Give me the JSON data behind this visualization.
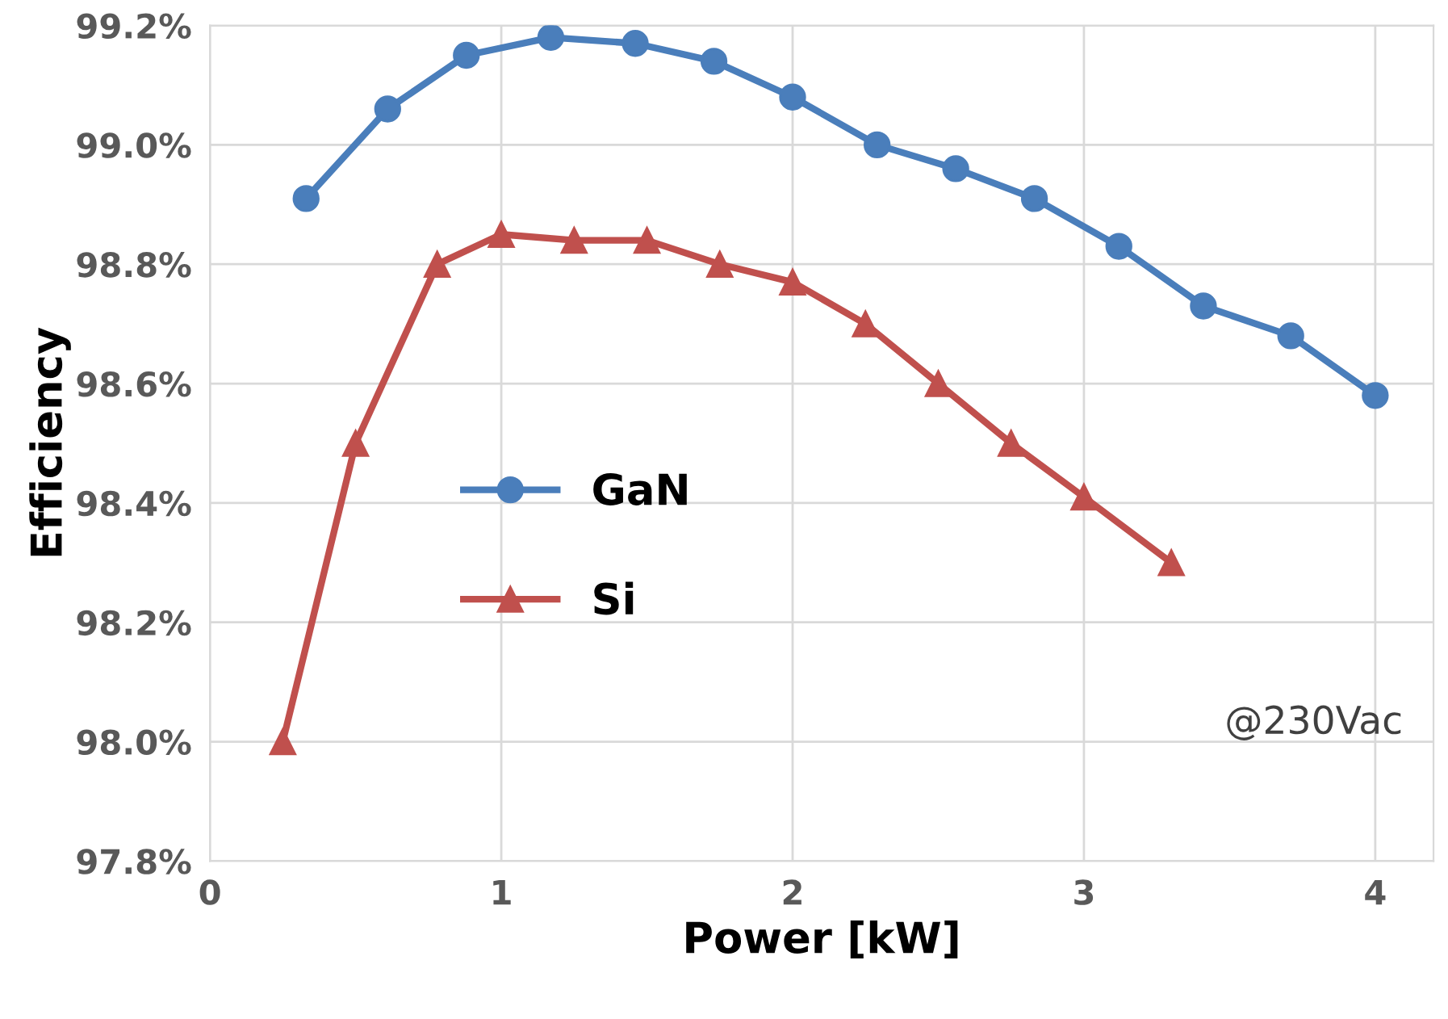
{
  "chart_data": {
    "type": "line",
    "xlabel": "Power [kW]",
    "ylabel": "Efficiency",
    "xlim": [
      0,
      4.2
    ],
    "xticks": [
      0,
      1,
      2,
      3,
      4
    ],
    "ylim": [
      97.8,
      99.2
    ],
    "yticks": [
      {
        "value": 97.8,
        "label": "97.8%"
      },
      {
        "value": 98.0,
        "label": "98.0%"
      },
      {
        "value": 98.2,
        "label": "98.2%"
      },
      {
        "value": 98.4,
        "label": "98.4%"
      },
      {
        "value": 98.6,
        "label": "98.6%"
      },
      {
        "value": 98.8,
        "label": "98.8%"
      },
      {
        "value": 99.0,
        "label": "99.0%"
      },
      {
        "value": 99.2,
        "label": "99.2%"
      }
    ],
    "grid": true,
    "legend": "center",
    "line_style": "solid",
    "annotations": [
      "@230Vac"
    ],
    "series": [
      {
        "name": "GaN",
        "color": "#4a7ebb",
        "marker": "circle",
        "x": [
          0.33,
          0.61,
          0.88,
          1.17,
          1.46,
          1.73,
          2.0,
          2.29,
          2.56,
          2.83,
          3.12,
          3.41,
          3.71,
          4.0
        ],
        "values": [
          98.91,
          99.06,
          99.15,
          99.18,
          99.17,
          99.14,
          99.08,
          99.0,
          98.96,
          98.91,
          98.83,
          98.73,
          98.68,
          98.58
        ]
      },
      {
        "name": "Si",
        "color": "#c0504d",
        "marker": "triangle",
        "x": [
          0.25,
          0.5,
          0.78,
          1.0,
          1.25,
          1.5,
          1.75,
          2.0,
          2.25,
          2.5,
          2.75,
          3.0,
          3.3
        ],
        "values": [
          98.0,
          98.5,
          98.8,
          98.85,
          98.84,
          98.84,
          98.8,
          98.77,
          98.7,
          98.6,
          98.5,
          98.41,
          98.3
        ]
      }
    ]
  }
}
